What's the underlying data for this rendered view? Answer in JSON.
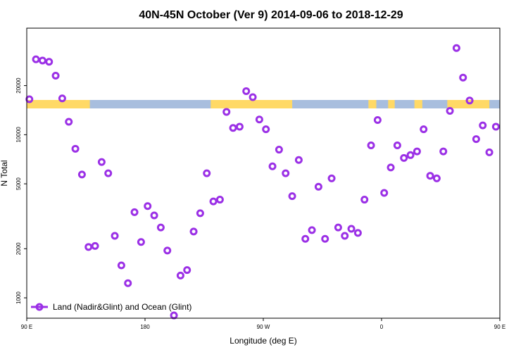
{
  "chart_data": {
    "type": "scatter",
    "title": "40N-45N October (Ver 9)   2014-09-06 to 2018-12-29",
    "xlabel": "Longitude (deg E)",
    "ylabel": "N Total",
    "y_scale": "log",
    "xlim": [
      90,
      450
    ],
    "ylim": [
      750,
      45000
    ],
    "x_ticks": [
      {
        "value": 90,
        "label": "90 E"
      },
      {
        "value": 180,
        "label": "180"
      },
      {
        "value": 270,
        "label": "90 W"
      },
      {
        "value": 360,
        "label": "0"
      },
      {
        "value": 450,
        "label": "90 E"
      },
      {
        "value": 540,
        "label": "180"
      }
    ],
    "y_ticks": [
      {
        "value": 1000,
        "label": "1000"
      },
      {
        "value": 2000,
        "label": "2000"
      },
      {
        "value": 5000,
        "label": "5000"
      },
      {
        "value": 10000,
        "label": "10000"
      },
      {
        "value": 20000,
        "label": "20000"
      }
    ],
    "legend": {
      "placement": "bottom-left",
      "label": "Land (Nadir&Glint) and Ocean (Glint)"
    },
    "colors": {
      "marker": "#9b30e6",
      "land": "#ffd966",
      "ocean": "#a8bede"
    },
    "land_mask": {
      "longitude_ranges": [
        [
          90,
          138
        ],
        [
          230,
          292
        ],
        [
          350,
          356
        ],
        [
          365,
          370
        ],
        [
          385,
          391
        ],
        [
          410,
          442
        ]
      ]
    },
    "series": [
      {
        "x": [
          92,
          97,
          102,
          107,
          112,
          117,
          122,
          127,
          132,
          137,
          142,
          147,
          152,
          157,
          162,
          167,
          172,
          177,
          182,
          187,
          192,
          197,
          202,
          207,
          212,
          217,
          222,
          227,
          232,
          237,
          242,
          247,
          252,
          257,
          262,
          267,
          272,
          277,
          282,
          287,
          292,
          297,
          302,
          307,
          312,
          317,
          322,
          327,
          332,
          337,
          342,
          347,
          352,
          357,
          362,
          367,
          372,
          377,
          382,
          387,
          392,
          397,
          402,
          407,
          412,
          417,
          422,
          427,
          432,
          437,
          442,
          447
        ],
        "y": [
          16500,
          29000,
          28500,
          28000,
          23000,
          16700,
          12000,
          8200,
          5700,
          2050,
          2080,
          6800,
          5800,
          2400,
          1580,
          1230,
          3350,
          2200,
          3650,
          3200,
          2700,
          1950,
          780,
          1370,
          1480,
          2550,
          3300,
          5800,
          3900,
          4000,
          13800,
          11000,
          11200,
          18500,
          17000,
          12400,
          10800,
          6400,
          8100,
          5800,
          4200,
          7000,
          2300,
          2600,
          4800,
          2300,
          5400,
          2700,
          2400,
          2650,
          2500,
          4000,
          8600,
          12300,
          4400,
          6300,
          8600,
          7200,
          7500,
          7900,
          10800,
          5600,
          5400,
          7900,
          14000,
          34000,
          22400,
          16200,
          9400,
          11400,
          7800,
          11200
        ]
      }
    ]
  }
}
